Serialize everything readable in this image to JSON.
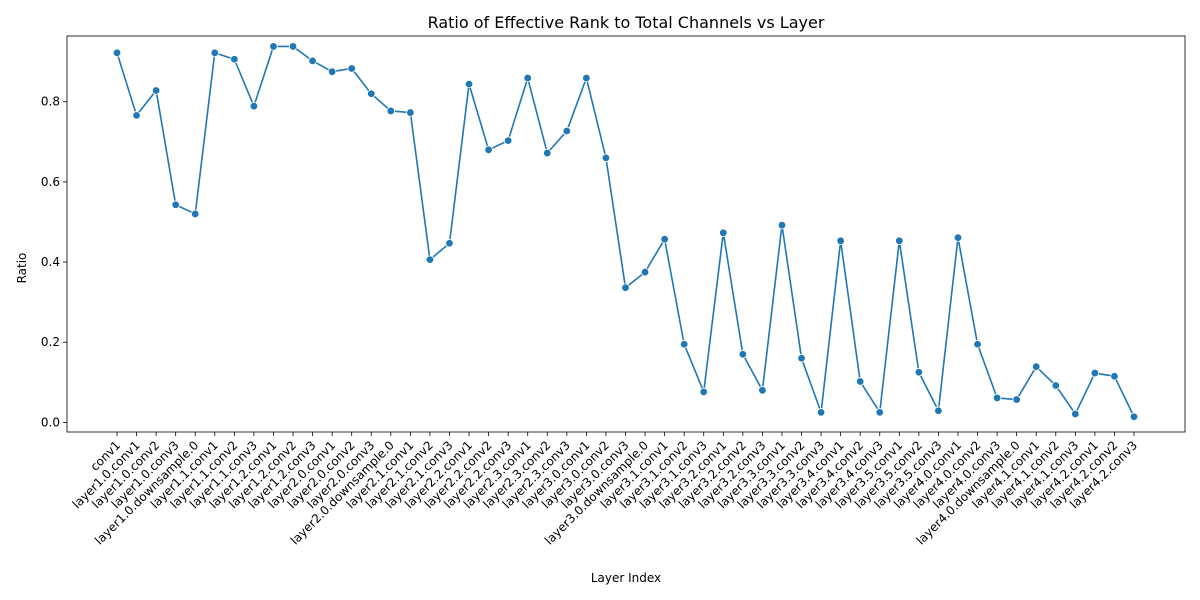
{
  "chart_data": {
    "type": "line",
    "title": "Ratio of Effective Rank to Total Channels vs Layer",
    "xlabel": "Layer Index",
    "ylabel": "Ratio",
    "ylim": [
      -0.024,
      0.964
    ],
    "yticks": [
      0.0,
      0.2,
      0.4,
      0.6,
      0.8
    ],
    "ytick_labels": [
      "0.0",
      "0.2",
      "0.4",
      "0.6",
      "0.8"
    ],
    "grid": false,
    "legend": "none",
    "line_color": "#1f77b4",
    "marker": "circle",
    "categories": [
      "conv1",
      "layer1.0.conv1",
      "layer1.0.conv2",
      "layer1.0.conv3",
      "layer1.0.downsample.0",
      "layer1.1.conv1",
      "layer1.1.conv2",
      "layer1.1.conv3",
      "layer1.2.conv1",
      "layer1.2.conv2",
      "layer1.2.conv3",
      "layer2.0.conv1",
      "layer2.0.conv2",
      "layer2.0.conv3",
      "layer2.0.downsample.0",
      "layer2.1.conv1",
      "layer2.1.conv2",
      "layer2.1.conv3",
      "layer2.2.conv1",
      "layer2.2.conv2",
      "layer2.2.conv3",
      "layer2.3.conv1",
      "layer2.3.conv2",
      "layer2.3.conv3",
      "layer3.0.conv1",
      "layer3.0.conv2",
      "layer3.0.conv3",
      "layer3.0.downsample.0",
      "layer3.1.conv1",
      "layer3.1.conv2",
      "layer3.1.conv3",
      "layer3.2.conv1",
      "layer3.2.conv2",
      "layer3.2.conv3",
      "layer3.3.conv1",
      "layer3.3.conv2",
      "layer3.3.conv3",
      "layer3.4.conv1",
      "layer3.4.conv2",
      "layer3.4.conv3",
      "layer3.5.conv1",
      "layer3.5.conv2",
      "layer3.5.conv3",
      "layer4.0.conv1",
      "layer4.0.conv2",
      "layer4.0.conv3",
      "layer4.0.downsample.0",
      "layer4.1.conv1",
      "layer4.1.conv2",
      "layer4.1.conv3",
      "layer4.2.conv1",
      "layer4.2.conv2",
      "layer4.2.conv3"
    ],
    "values": [
      0.922,
      0.766,
      0.828,
      0.543,
      0.52,
      0.922,
      0.906,
      0.789,
      0.938,
      0.938,
      0.902,
      0.875,
      0.883,
      0.82,
      0.777,
      0.773,
      0.406,
      0.447,
      0.844,
      0.68,
      0.703,
      0.859,
      0.672,
      0.727,
      0.859,
      0.66,
      0.336,
      0.375,
      0.457,
      0.195,
      0.076,
      0.473,
      0.17,
      0.08,
      0.492,
      0.16,
      0.025,
      0.453,
      0.102,
      0.025,
      0.453,
      0.125,
      0.029,
      0.461,
      0.195,
      0.061,
      0.057,
      0.139,
      0.092,
      0.021,
      0.123,
      0.115,
      0.014
    ]
  }
}
